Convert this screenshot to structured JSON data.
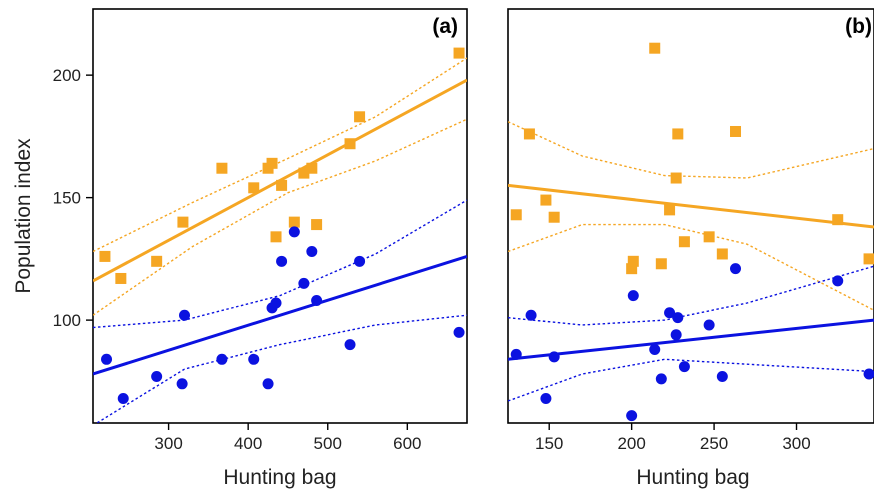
{
  "colors": {
    "orange": "#f5a623",
    "blue": "#0b12e0",
    "axis": "#000000"
  },
  "chart_data": [
    {
      "type": "scatter",
      "panel_label": "(a)",
      "xlabel": "Hunting bag",
      "ylabel": "Population index",
      "xlim": [
        205,
        675
      ],
      "ylim": [
        58,
        227
      ],
      "xticks": [
        300,
        400,
        500,
        600
      ],
      "yticks": [
        100,
        150,
        200
      ],
      "series": [
        {
          "color": "orange",
          "marker": "square",
          "points": [
            [
              220,
              126
            ],
            [
              240,
              117
            ],
            [
              285,
              124
            ],
            [
              318,
              140
            ],
            [
              367,
              162
            ],
            [
              407,
              154
            ],
            [
              425,
              162
            ],
            [
              430,
              164
            ],
            [
              435,
              134
            ],
            [
              442,
              155
            ],
            [
              458,
              140
            ],
            [
              470,
              160
            ],
            [
              480,
              162
            ],
            [
              486,
              139
            ],
            [
              528,
              172
            ],
            [
              540,
              183
            ],
            [
              665,
              209
            ]
          ],
          "fit": [
            [
              205,
              116
            ],
            [
              675,
              198
            ]
          ],
          "ci_upper": [
            [
              205,
              128
            ],
            [
              330,
              148
            ],
            [
              450,
              166
            ],
            [
              560,
              183
            ],
            [
              675,
              207
            ]
          ],
          "ci_lower": [
            [
              205,
              102
            ],
            [
              330,
              130
            ],
            [
              450,
              152
            ],
            [
              560,
              165
            ],
            [
              675,
              182
            ]
          ]
        },
        {
          "color": "blue",
          "marker": "circle",
          "points": [
            [
              222,
              84
            ],
            [
              243,
              68
            ],
            [
              285,
              77
            ],
            [
              317,
              74
            ],
            [
              320,
              102
            ],
            [
              367,
              84
            ],
            [
              407,
              84
            ],
            [
              425,
              74
            ],
            [
              430,
              105
            ],
            [
              435,
              107
            ],
            [
              442,
              124
            ],
            [
              458,
              136
            ],
            [
              470,
              115
            ],
            [
              480,
              128
            ],
            [
              486,
              108
            ],
            [
              528,
              90
            ],
            [
              540,
              124
            ],
            [
              665,
              95
            ]
          ],
          "fit": [
            [
              205,
              78
            ],
            [
              675,
              126
            ]
          ],
          "ci_upper": [
            [
              205,
              97
            ],
            [
              320,
              100
            ],
            [
              440,
              110
            ],
            [
              560,
              127
            ],
            [
              675,
              149
            ]
          ],
          "ci_lower": [
            [
              205,
              57
            ],
            [
              320,
              80
            ],
            [
              440,
              90
            ],
            [
              560,
              98
            ],
            [
              675,
              102
            ]
          ]
        }
      ]
    },
    {
      "type": "scatter",
      "panel_label": "(b)",
      "xlabel": "Hunting bag",
      "ylabel": "",
      "xlim": [
        125,
        347
      ],
      "ylim": [
        58,
        227
      ],
      "xticks": [
        150,
        200,
        250,
        300
      ],
      "yticks": [],
      "series": [
        {
          "color": "orange",
          "marker": "square",
          "points": [
            [
              130,
              143
            ],
            [
              138,
              176
            ],
            [
              148,
              149
            ],
            [
              153,
              142
            ],
            [
              200,
              121
            ],
            [
              201,
              124
            ],
            [
              214,
              211
            ],
            [
              218,
              123
            ],
            [
              223,
              145
            ],
            [
              227,
              158
            ],
            [
              228,
              176
            ],
            [
              232,
              132
            ],
            [
              247,
              134
            ],
            [
              255,
              127
            ],
            [
              263,
              177
            ],
            [
              325,
              141
            ],
            [
              344,
              125
            ]
          ],
          "fit": [
            [
              125,
              155
            ],
            [
              347,
              138
            ]
          ],
          "ci_upper": [
            [
              125,
              181
            ],
            [
              170,
              167
            ],
            [
              220,
              159
            ],
            [
              270,
              158
            ],
            [
              347,
              170
            ]
          ],
          "ci_lower": [
            [
              125,
              128
            ],
            [
              170,
              139
            ],
            [
              220,
              139
            ],
            [
              270,
              131
            ],
            [
              347,
              104
            ]
          ]
        },
        {
          "color": "blue",
          "marker": "circle",
          "points": [
            [
              130,
              86
            ],
            [
              139,
              102
            ],
            [
              148,
              68
            ],
            [
              153,
              85
            ],
            [
              200,
              61
            ],
            [
              201,
              110
            ],
            [
              214,
              88
            ],
            [
              218,
              76
            ],
            [
              223,
              103
            ],
            [
              227,
              94
            ],
            [
              228,
              101
            ],
            [
              232,
              81
            ],
            [
              247,
              98
            ],
            [
              255,
              77
            ],
            [
              263,
              121
            ],
            [
              325,
              116
            ],
            [
              344,
              78
            ]
          ],
          "fit": [
            [
              125,
              84
            ],
            [
              347,
              100
            ]
          ],
          "ci_upper": [
            [
              125,
              101
            ],
            [
              170,
              98
            ],
            [
              220,
              100
            ],
            [
              270,
              107
            ],
            [
              347,
              122
            ]
          ],
          "ci_lower": [
            [
              125,
              67
            ],
            [
              170,
              78
            ],
            [
              220,
              84
            ],
            [
              270,
              82
            ],
            [
              347,
              79
            ]
          ]
        }
      ]
    }
  ]
}
